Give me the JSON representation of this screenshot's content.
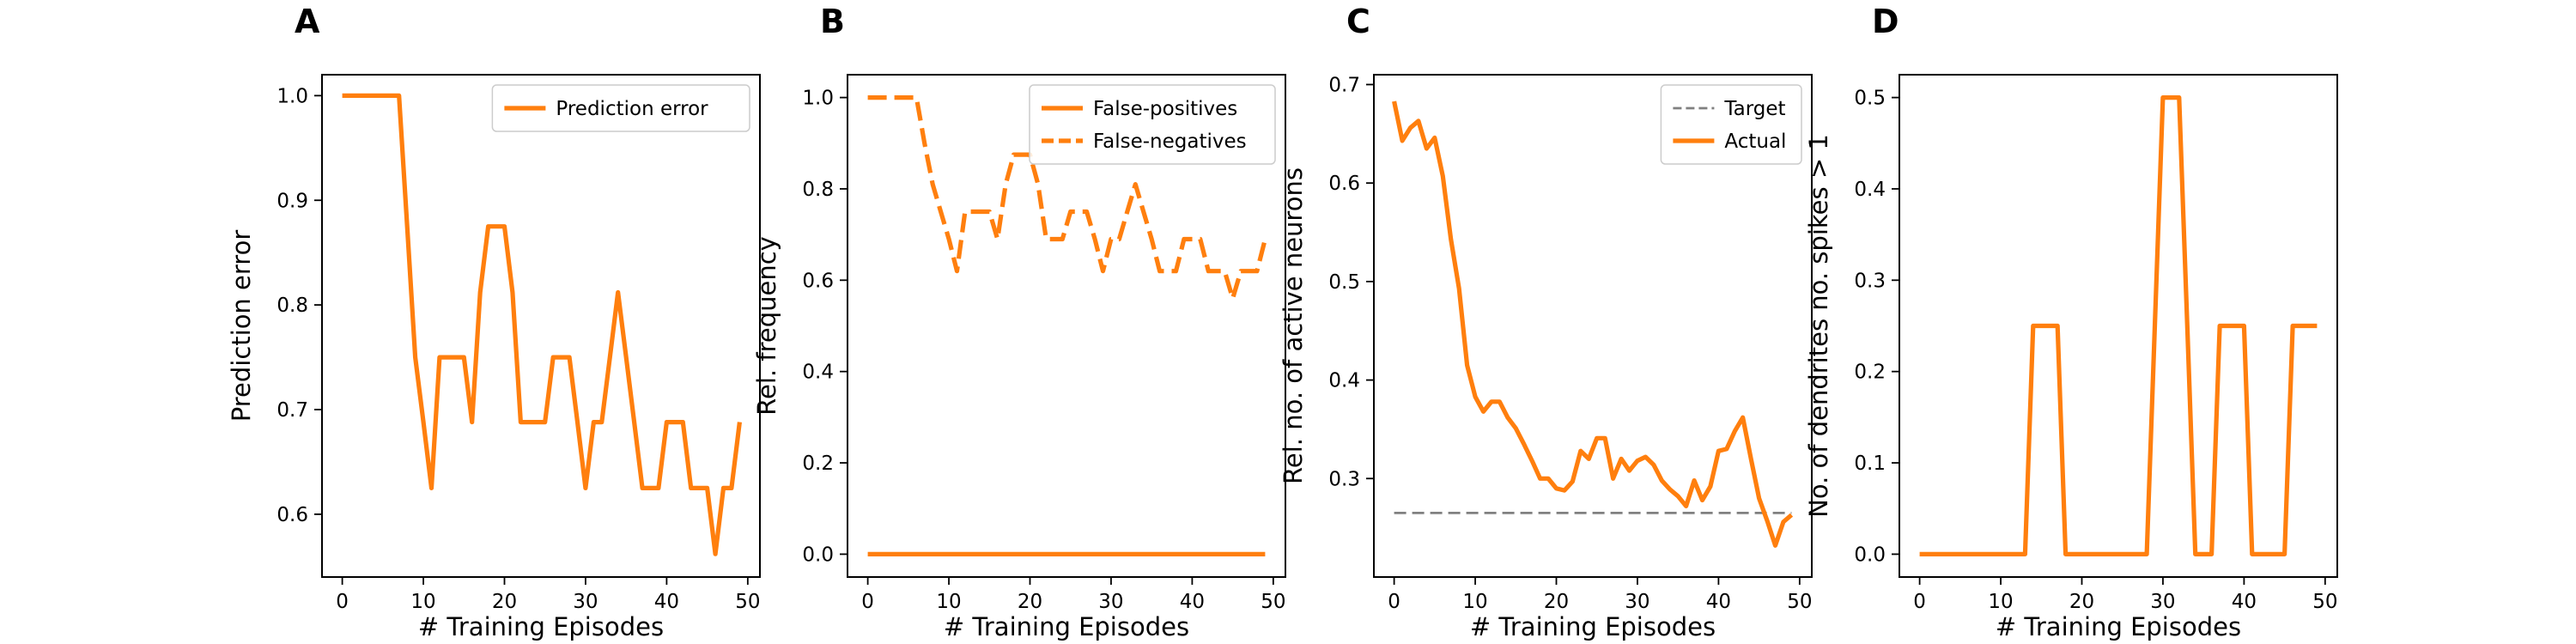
{
  "colors": {
    "series": "#ff7f0e",
    "target": "#808080",
    "axis": "#000000"
  },
  "chart_data": [
    {
      "panel_letter": "A",
      "type": "line",
      "xlabel": "# Training Episodes",
      "ylabel": "Prediction error",
      "xlim": [
        -2.5,
        51.5
      ],
      "ylim": [
        0.54,
        1.02
      ],
      "xticks": [
        0,
        10,
        20,
        30,
        40,
        50
      ],
      "yticks": [
        0.6,
        0.7,
        0.8,
        0.9,
        1.0
      ],
      "yticks_text": [
        "0.6",
        "0.7",
        "0.8",
        "0.9",
        "1.0"
      ],
      "legend_position": "top-right",
      "series": [
        {
          "name": "Prediction error",
          "style": "solid",
          "points": [
            [
              0,
              1.0
            ],
            [
              1,
              1.0
            ],
            [
              2,
              1.0
            ],
            [
              3,
              1.0
            ],
            [
              4,
              1.0
            ],
            [
              5,
              1.0
            ],
            [
              6,
              1.0
            ],
            [
              7,
              1.0
            ],
            [
              8,
              0.875
            ],
            [
              9,
              0.75
            ],
            [
              10,
              0.688
            ],
            [
              11,
              0.625
            ],
            [
              12,
              0.75
            ],
            [
              13,
              0.75
            ],
            [
              14,
              0.75
            ],
            [
              15,
              0.75
            ],
            [
              16,
              0.688
            ],
            [
              17,
              0.812
            ],
            [
              18,
              0.875
            ],
            [
              19,
              0.875
            ],
            [
              20,
              0.875
            ],
            [
              21,
              0.812
            ],
            [
              22,
              0.688
            ],
            [
              23,
              0.688
            ],
            [
              24,
              0.688
            ],
            [
              25,
              0.688
            ],
            [
              26,
              0.75
            ],
            [
              27,
              0.75
            ],
            [
              28,
              0.75
            ],
            [
              29,
              0.688
            ],
            [
              30,
              0.625
            ],
            [
              31,
              0.688
            ],
            [
              32,
              0.688
            ],
            [
              33,
              0.75
            ],
            [
              34,
              0.812
            ],
            [
              35,
              0.75
            ],
            [
              36,
              0.688
            ],
            [
              37,
              0.625
            ],
            [
              38,
              0.625
            ],
            [
              39,
              0.625
            ],
            [
              40,
              0.688
            ],
            [
              41,
              0.688
            ],
            [
              42,
              0.688
            ],
            [
              43,
              0.625
            ],
            [
              44,
              0.625
            ],
            [
              45,
              0.625
            ],
            [
              46,
              0.562
            ],
            [
              47,
              0.625
            ],
            [
              48,
              0.625
            ],
            [
              49,
              0.688
            ]
          ]
        }
      ]
    },
    {
      "panel_letter": "B",
      "type": "line",
      "xlabel": "# Training Episodes",
      "ylabel": "Rel. frequency",
      "xlim": [
        -2.5,
        51.5
      ],
      "ylim": [
        -0.05,
        1.05
      ],
      "xticks": [
        0,
        10,
        20,
        30,
        40,
        50
      ],
      "yticks": [
        0.0,
        0.2,
        0.4,
        0.6,
        0.8,
        1.0
      ],
      "yticks_text": [
        "0.0",
        "0.2",
        "0.4",
        "0.6",
        "0.8",
        "1.0"
      ],
      "legend_position": "top-right",
      "series": [
        {
          "name": "False-positives",
          "style": "solid",
          "points": [
            [
              0,
              0
            ],
            [
              49,
              0
            ]
          ]
        },
        {
          "name": "False-negatives",
          "style": "dashed",
          "points": [
            [
              0,
              1.0
            ],
            [
              1,
              1.0
            ],
            [
              2,
              1.0
            ],
            [
              3,
              1.0
            ],
            [
              4,
              1.0
            ],
            [
              5,
              1.0
            ],
            [
              6,
              1.0
            ],
            [
              7,
              0.9
            ],
            [
              8,
              0.81
            ],
            [
              9,
              0.75
            ],
            [
              10,
              0.69
            ],
            [
              11,
              0.62
            ],
            [
              12,
              0.75
            ],
            [
              13,
              0.75
            ],
            [
              14,
              0.75
            ],
            [
              15,
              0.75
            ],
            [
              16,
              0.69
            ],
            [
              17,
              0.81
            ],
            [
              18,
              0.875
            ],
            [
              19,
              0.875
            ],
            [
              20,
              0.875
            ],
            [
              21,
              0.81
            ],
            [
              22,
              0.69
            ],
            [
              23,
              0.69
            ],
            [
              24,
              0.69
            ],
            [
              25,
              0.75
            ],
            [
              26,
              0.75
            ],
            [
              27,
              0.75
            ],
            [
              28,
              0.69
            ],
            [
              29,
              0.62
            ],
            [
              30,
              0.69
            ],
            [
              31,
              0.69
            ],
            [
              32,
              0.75
            ],
            [
              33,
              0.81
            ],
            [
              34,
              0.75
            ],
            [
              35,
              0.69
            ],
            [
              36,
              0.62
            ],
            [
              37,
              0.62
            ],
            [
              38,
              0.62
            ],
            [
              39,
              0.69
            ],
            [
              40,
              0.69
            ],
            [
              41,
              0.69
            ],
            [
              42,
              0.62
            ],
            [
              43,
              0.62
            ],
            [
              44,
              0.62
            ],
            [
              45,
              0.56
            ],
            [
              46,
              0.62
            ],
            [
              47,
              0.62
            ],
            [
              48,
              0.62
            ],
            [
              49,
              0.69
            ]
          ]
        }
      ]
    },
    {
      "panel_letter": "C",
      "type": "line",
      "xlabel": "# Training Episodes",
      "ylabel": "Rel. no. of active neurons",
      "xlim": [
        -2.5,
        51.5
      ],
      "ylim": [
        0.2,
        0.71
      ],
      "xticks": [
        0,
        10,
        20,
        30,
        40,
        50
      ],
      "yticks": [
        0.3,
        0.4,
        0.5,
        0.6,
        0.7
      ],
      "yticks_text": [
        "0.3",
        "0.4",
        "0.5",
        "0.6",
        "0.7"
      ],
      "legend_position": "top-right",
      "series": [
        {
          "name": "Target",
          "style": "dashed-gray",
          "points": [
            [
              0,
              0.265
            ],
            [
              49,
              0.265
            ]
          ]
        },
        {
          "name": "Actual",
          "style": "solid",
          "points": [
            [
              0,
              0.683
            ],
            [
              1,
              0.643
            ],
            [
              2,
              0.656
            ],
            [
              3,
              0.663
            ],
            [
              4,
              0.635
            ],
            [
              5,
              0.646
            ],
            [
              6,
              0.607
            ],
            [
              7,
              0.543
            ],
            [
              8,
              0.493
            ],
            [
              9,
              0.415
            ],
            [
              10,
              0.383
            ],
            [
              11,
              0.368
            ],
            [
              12,
              0.378
            ],
            [
              13,
              0.378
            ],
            [
              14,
              0.362
            ],
            [
              15,
              0.351
            ],
            [
              16,
              0.335
            ],
            [
              17,
              0.318
            ],
            [
              18,
              0.3
            ],
            [
              19,
              0.3
            ],
            [
              20,
              0.29
            ],
            [
              21,
              0.288
            ],
            [
              22,
              0.297
            ],
            [
              23,
              0.328
            ],
            [
              24,
              0.32
            ],
            [
              25,
              0.341
            ],
            [
              26,
              0.341
            ],
            [
              27,
              0.3
            ],
            [
              28,
              0.32
            ],
            [
              29,
              0.308
            ],
            [
              30,
              0.318
            ],
            [
              31,
              0.322
            ],
            [
              32,
              0.314
            ],
            [
              33,
              0.298
            ],
            [
              34,
              0.289
            ],
            [
              35,
              0.282
            ],
            [
              36,
              0.272
            ],
            [
              37,
              0.298
            ],
            [
              38,
              0.278
            ],
            [
              39,
              0.292
            ],
            [
              40,
              0.328
            ],
            [
              41,
              0.33
            ],
            [
              42,
              0.348
            ],
            [
              43,
              0.362
            ],
            [
              44,
              0.32
            ],
            [
              45,
              0.28
            ],
            [
              46,
              0.257
            ],
            [
              47,
              0.232
            ],
            [
              48,
              0.256
            ],
            [
              49,
              0.263
            ]
          ]
        }
      ]
    },
    {
      "panel_letter": "D",
      "type": "line",
      "xlabel": "# Training Episodes",
      "ylabel": "No. of dendrites no. spikes > 1",
      "xlim": [
        -2.5,
        51.5
      ],
      "ylim": [
        -0.025,
        0.525
      ],
      "xticks": [
        0,
        10,
        20,
        30,
        40,
        50
      ],
      "yticks": [
        0.0,
        0.1,
        0.2,
        0.3,
        0.4,
        0.5
      ],
      "yticks_text": [
        "0.0",
        "0.1",
        "0.2",
        "0.3",
        "0.4",
        "0.5"
      ],
      "legend_position": "none",
      "series": [
        {
          "name": "",
          "style": "solid",
          "points": [
            [
              0,
              0
            ],
            [
              13,
              0
            ],
            [
              14,
              0.25
            ],
            [
              17,
              0.25
            ],
            [
              18,
              0
            ],
            [
              28,
              0
            ],
            [
              29,
              0.25
            ],
            [
              30,
              0.5
            ],
            [
              32,
              0.5
            ],
            [
              33,
              0.25
            ],
            [
              34,
              0
            ],
            [
              36,
              0
            ],
            [
              37,
              0.25
            ],
            [
              40,
              0.25
            ],
            [
              41,
              0
            ],
            [
              45,
              0
            ],
            [
              46,
              0.25
            ],
            [
              49,
              0.25
            ]
          ]
        }
      ]
    }
  ]
}
